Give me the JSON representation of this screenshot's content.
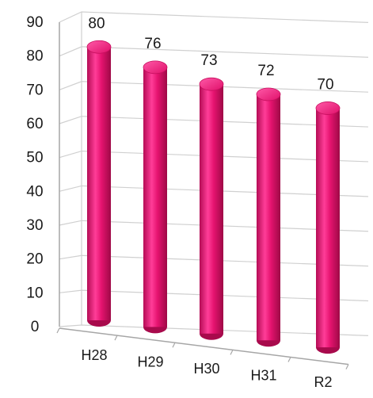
{
  "chart_data": {
    "type": "bar",
    "categories": [
      "H28",
      "H29",
      "H30",
      "H31",
      "R2"
    ],
    "values": [
      80,
      76,
      73,
      72,
      70
    ],
    "ylim": [
      0,
      90
    ],
    "yticks": [
      0,
      10,
      20,
      30,
      40,
      50,
      60,
      70,
      80,
      90
    ],
    "grid": true,
    "legend": "none",
    "style": "3d-cylinder",
    "colors": {
      "bar": "#e5136f",
      "bar_light": "#ff4aa0",
      "bar_dark": "#a80a4c",
      "grid": "#d0d0d0",
      "axis": "#a6a6a6"
    }
  }
}
